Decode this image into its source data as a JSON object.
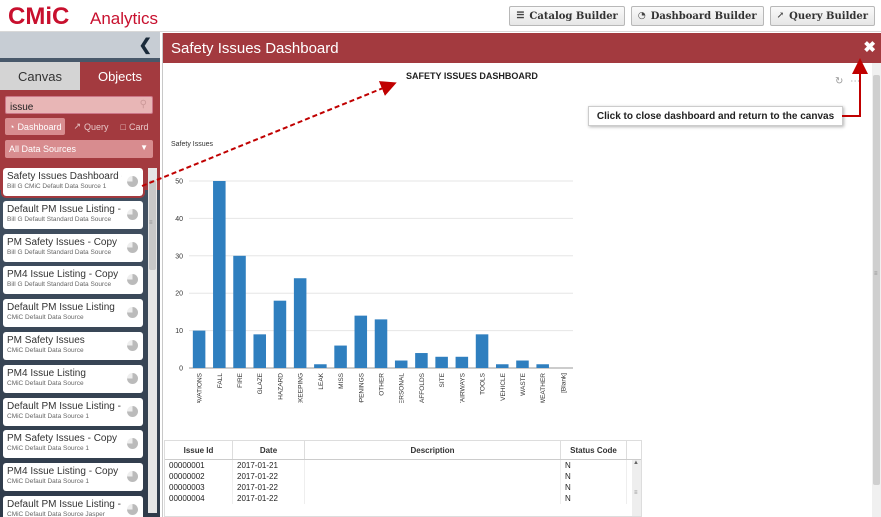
{
  "app": {
    "logo": "CMiC",
    "name": "Analytics"
  },
  "builders": [
    {
      "label": "Catalog Builder",
      "icon": "database-icon"
    },
    {
      "label": "Dashboard Builder",
      "icon": "gauge-icon"
    },
    {
      "label": "Query Builder",
      "icon": "line-chart-icon"
    }
  ],
  "left": {
    "tabs": [
      "Canvas",
      "Objects"
    ],
    "search": {
      "value": "issue",
      "placeholder": ""
    },
    "types": [
      "Dashboard",
      "Query",
      "Card"
    ],
    "source": "All Data Sources",
    "items": [
      {
        "title": "Safety Issues Dashboard - ...",
        "sub": "Bill G CMiC Default Data Source 1",
        "selected": true
      },
      {
        "title": "Default PM Issue Listing - ...",
        "sub": "Bill G Default Standard Data Source"
      },
      {
        "title": "PM Safety Issues - Copy",
        "sub": "Bill G Default Standard Data Source"
      },
      {
        "title": "PM4 Issue Listing - Copy",
        "sub": "Bill G Default Standard Data Source"
      },
      {
        "title": "Default PM Issue Listing",
        "sub": "CMiC Default Data Source"
      },
      {
        "title": "PM Safety Issues",
        "sub": "CMiC Default Data Source"
      },
      {
        "title": "PM4 Issue Listing",
        "sub": "CMiC Default Data Source"
      },
      {
        "title": "Default PM Issue Listing - ...",
        "sub": "CMiC Default Data Source 1"
      },
      {
        "title": "PM Safety Issues - Copy",
        "sub": "CMiC Default Data Source 1"
      },
      {
        "title": "PM4 Issue Listing - Copy",
        "sub": "CMiC Default Data Source 1"
      },
      {
        "title": "Default PM Issue Listing - ...",
        "sub": "CMiC Default Data Source Jasper"
      }
    ]
  },
  "dashboard": {
    "title": "Safety Issues Dashboard",
    "annotation": "Click to close dashboard and return to the canvas",
    "colors": {
      "bar": "#2f7fbf",
      "header": "#a33a3f"
    }
  },
  "chart_data": {
    "type": "bar",
    "title": "SAFETY ISSUES DASHBOARD",
    "ylabel": "Safety Issues",
    "xlabel": "",
    "ylim": [
      0,
      50
    ],
    "yticks": [
      0,
      10,
      20,
      30,
      40,
      50
    ],
    "categories": [
      "EXCAVATIONS",
      "FALL",
      "FIRE",
      "GLAZE",
      "HAZARD",
      "HOUSEKEEPING",
      "LEAK",
      "MISS",
      "OPENINGS",
      "OTHER",
      "PERSONAL",
      "SCAFFOLDS",
      "SITE",
      "STAIRWAYS",
      "TOOLS",
      "VEHICLE",
      "WASTE",
      "WEATHER",
      "[Blank]"
    ],
    "values": [
      10,
      50,
      30,
      9,
      18,
      24,
      1,
      6,
      14,
      13,
      2,
      4,
      3,
      3,
      9,
      1,
      2,
      1,
      0
    ]
  },
  "table": {
    "headers": [
      "Issue Id",
      "Date",
      "Description",
      "Status Code"
    ],
    "rows": [
      [
        "00000001",
        "2017-01-21",
        "",
        "N"
      ],
      [
        "00000002",
        "2017-01-22",
        "",
        "N"
      ],
      [
        "00000003",
        "2017-01-22",
        "",
        "N"
      ],
      [
        "00000004",
        "2017-01-22",
        "",
        "N"
      ]
    ]
  }
}
